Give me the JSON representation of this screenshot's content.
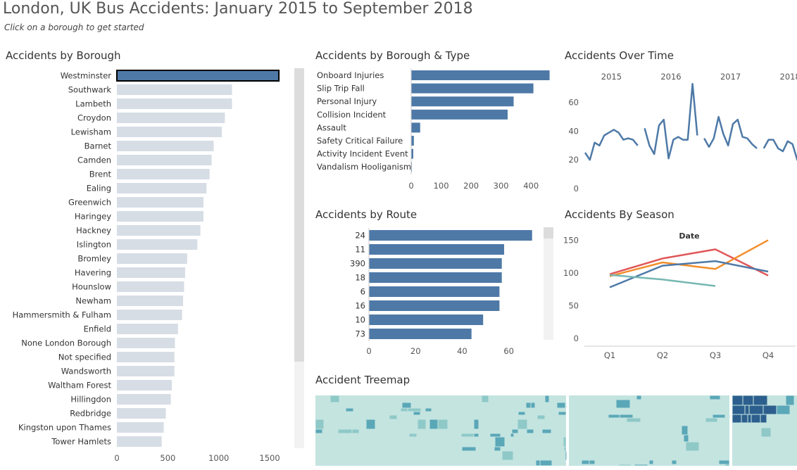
{
  "page": {
    "title": "London, UK Bus Accidents: January 2015 to September 2018",
    "subtitle": "Click on a borough to get started"
  },
  "colors": {
    "selected_bar": "#4e79a7",
    "unselected_bar": "#d6dde5",
    "bar": "#4e79a7",
    "scrollbar": "#e2e2e2",
    "q_line_1": "#e15759",
    "q_line_2": "#f28e2b",
    "q_line_3": "#4e79a7",
    "q_line_4": "#76b7b2",
    "treemap_light": "#c4e4e0",
    "treemap_mid": "#5aa7b8",
    "treemap_dark": "#2c5f8d"
  },
  "panels": {
    "borough": "Accidents by Borough",
    "type": "Accidents by Borough & Type",
    "time": "Accidents Over Time",
    "route": "Accidents by Route",
    "season": "Accidents By Season",
    "treemap": "Accident Treemap"
  },
  "chart_data": [
    {
      "id": "borough",
      "type": "bar",
      "orientation": "horizontal",
      "categories": [
        "Westminster",
        "Southwark",
        "Lambeth",
        "Croydon",
        "Lewisham",
        "Barnet",
        "Camden",
        "Brent",
        "Ealing",
        "Greenwich",
        "Haringey",
        "Hackney",
        "Islington",
        "Bromley",
        "Havering",
        "Hounslow",
        "Newham",
        "Hammersmith & Fulham",
        "Enfield",
        "None London Borough",
        "Not specified",
        "Wandsworth",
        "Waltham Forest",
        "Hillingdon",
        "Redbridge",
        "Kingston upon Thames",
        "Tower Hamlets"
      ],
      "values": [
        1590,
        1130,
        1130,
        1060,
        1030,
        950,
        930,
        910,
        880,
        850,
        850,
        820,
        790,
        690,
        670,
        660,
        650,
        640,
        600,
        570,
        565,
        565,
        540,
        530,
        480,
        460,
        440
      ],
      "selected": "Westminster",
      "xticks": [
        0,
        500,
        1000,
        1500
      ],
      "xlim": [
        0,
        1700
      ]
    },
    {
      "id": "type",
      "type": "bar",
      "orientation": "horizontal",
      "categories": [
        "Onboard Injuries",
        "Slip Trip Fall",
        "Personal Injury",
        "Collision Incident",
        "Assault",
        "Safety Critical Failure",
        "Activity Incident Event",
        "Vandalism Hooliganism"
      ],
      "values": [
        462,
        408,
        342,
        322,
        30,
        9,
        7,
        2
      ],
      "xticks": [
        0,
        100,
        200,
        300,
        400
      ],
      "xlim": [
        0,
        470
      ]
    },
    {
      "id": "time",
      "type": "line",
      "year_labels": [
        "2015",
        "2016",
        "2017",
        "2018"
      ],
      "segments": [
        [
          25,
          20,
          32,
          30,
          37,
          39,
          41,
          39,
          34,
          35,
          34,
          30
        ],
        [
          42,
          30,
          24,
          44,
          48,
          21,
          34,
          36,
          34,
          34,
          73,
          37
        ],
        [
          35,
          29,
          35,
          50,
          38,
          30,
          45,
          48,
          36,
          35,
          31,
          28
        ],
        [
          28,
          34,
          34,
          28,
          26,
          33,
          31,
          20,
          30
        ]
      ],
      "yticks": [
        0,
        20,
        40,
        60
      ],
      "ylim": [
        0,
        75
      ]
    },
    {
      "id": "route",
      "type": "bar",
      "orientation": "horizontal",
      "categories": [
        "24",
        "11",
        "390",
        "18",
        "6",
        "16",
        "10",
        "73"
      ],
      "values": [
        70,
        58,
        57,
        57,
        56,
        56,
        49,
        44
      ],
      "xticks": [
        0,
        20,
        40,
        60
      ],
      "xlim": [
        0,
        74
      ]
    },
    {
      "id": "season",
      "type": "line",
      "chart_title": "Date",
      "categories": [
        "Q1",
        "Q2",
        "Q3",
        "Q4"
      ],
      "series": [
        {
          "values": [
            98,
            122,
            136,
            96
          ]
        },
        {
          "values": [
            95,
            116,
            106,
            150
          ]
        },
        {
          "values": [
            78,
            111,
            118,
            102
          ]
        },
        {
          "values": [
            97,
            90,
            80,
            null
          ]
        }
      ],
      "yticks": [
        0,
        50,
        100,
        150
      ],
      "ylim": [
        0,
        160
      ]
    }
  ]
}
